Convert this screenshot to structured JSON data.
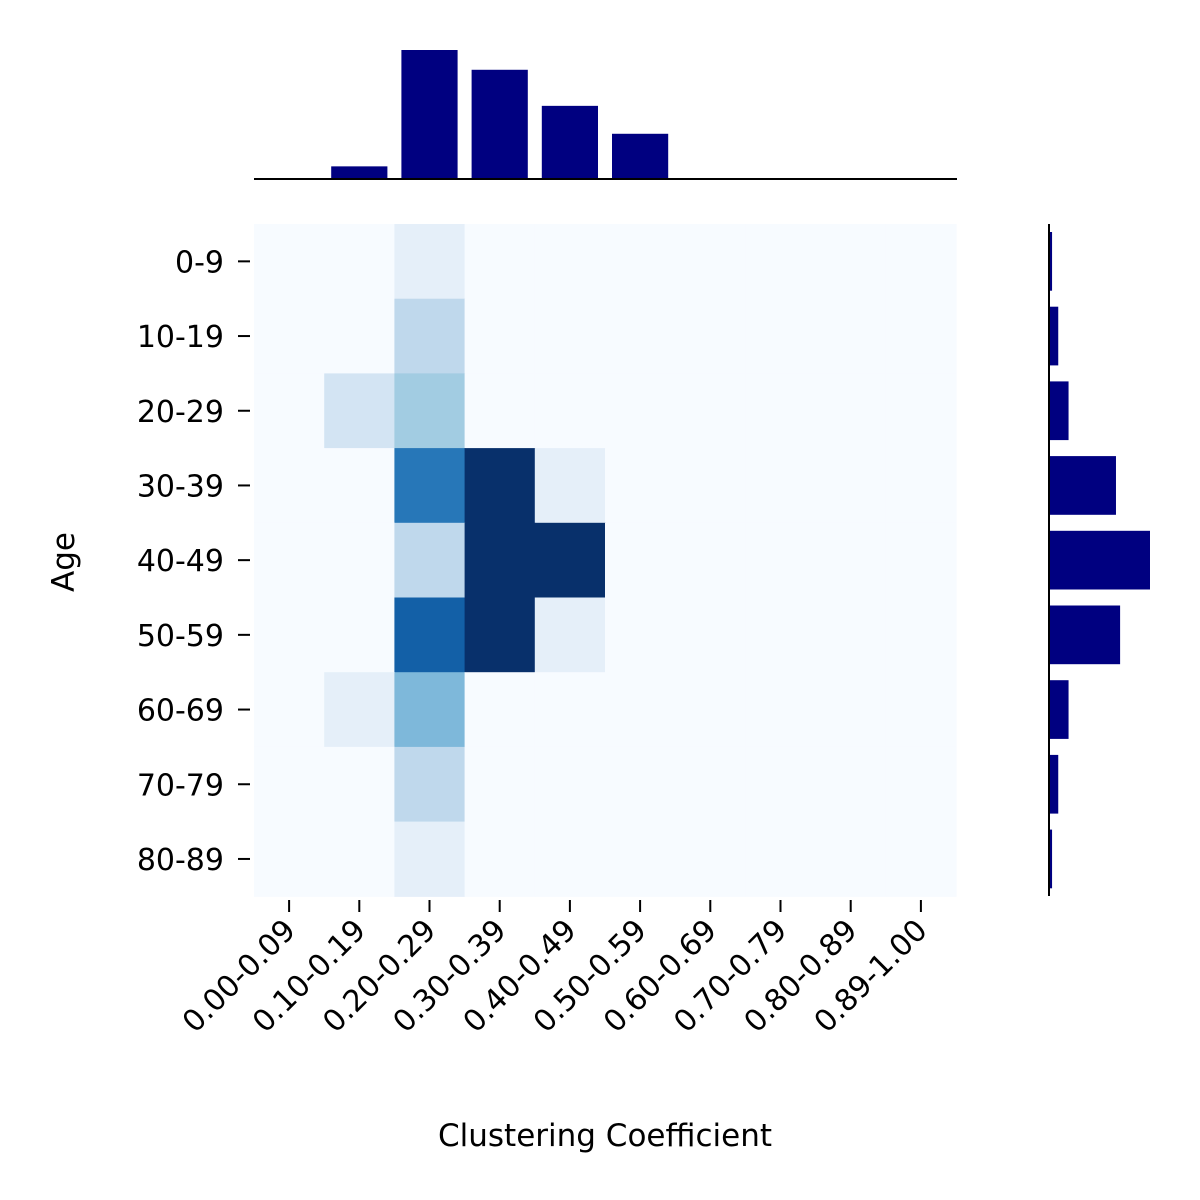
{
  "chart_data": {
    "type": "heatmap",
    "xlabel": "Clustering Coefficient",
    "ylabel": "Age",
    "x_categories": [
      "0.00-0.09",
      "0.10-0.19",
      "0.20-0.29",
      "0.30-0.39",
      "0.40-0.49",
      "0.50-0.59",
      "0.60-0.69",
      "0.70-0.79",
      "0.80-0.89",
      "0.89-1.00"
    ],
    "y_categories": [
      "0-9",
      "10-19",
      "20-29",
      "30-39",
      "40-49",
      "50-59",
      "60-69",
      "70-79",
      "80-89"
    ],
    "colormap": "Blues",
    "values": [
      [
        0,
        0,
        1,
        0,
        0,
        0,
        0,
        0,
        0,
        0
      ],
      [
        0,
        0,
        3,
        0,
        0,
        0,
        0,
        0,
        0,
        0
      ],
      [
        0,
        2,
        4,
        0,
        0,
        0,
        0,
        0,
        0,
        0
      ],
      [
        0,
        0,
        8,
        11,
        1,
        0,
        0,
        0,
        0,
        0
      ],
      [
        0,
        0,
        3,
        11,
        11,
        0,
        0,
        0,
        0,
        0
      ],
      [
        0,
        0,
        9,
        11,
        1,
        0,
        0,
        0,
        0,
        0
      ],
      [
        0,
        1,
        5,
        0,
        0,
        0,
        0,
        0,
        0,
        0
      ],
      [
        0,
        0,
        3,
        0,
        0,
        0,
        0,
        0,
        0,
        0
      ],
      [
        0,
        0,
        1,
        0,
        0,
        0,
        0,
        0,
        0,
        0
      ]
    ],
    "top_marginal": {
      "type": "bar",
      "categories": [
        "0.00-0.09",
        "0.10-0.19",
        "0.20-0.29",
        "0.30-0.39",
        "0.40-0.49",
        "0.50-0.59",
        "0.60-0.69",
        "0.70-0.79",
        "0.80-0.89",
        "0.89-1.00"
      ],
      "values": [
        0,
        1,
        11,
        9.3,
        6.2,
        3.8,
        0,
        0,
        0,
        0
      ],
      "color": "#000080"
    },
    "right_marginal": {
      "type": "bar",
      "orientation": "horizontal",
      "categories": [
        "0-9",
        "10-19",
        "20-29",
        "30-39",
        "40-49",
        "50-59",
        "60-69",
        "70-79",
        "80-89"
      ],
      "values": [
        0.2,
        0.8,
        1.8,
        6.4,
        9.7,
        6.8,
        1.8,
        0.8,
        0.2
      ],
      "color": "#000080"
    }
  }
}
